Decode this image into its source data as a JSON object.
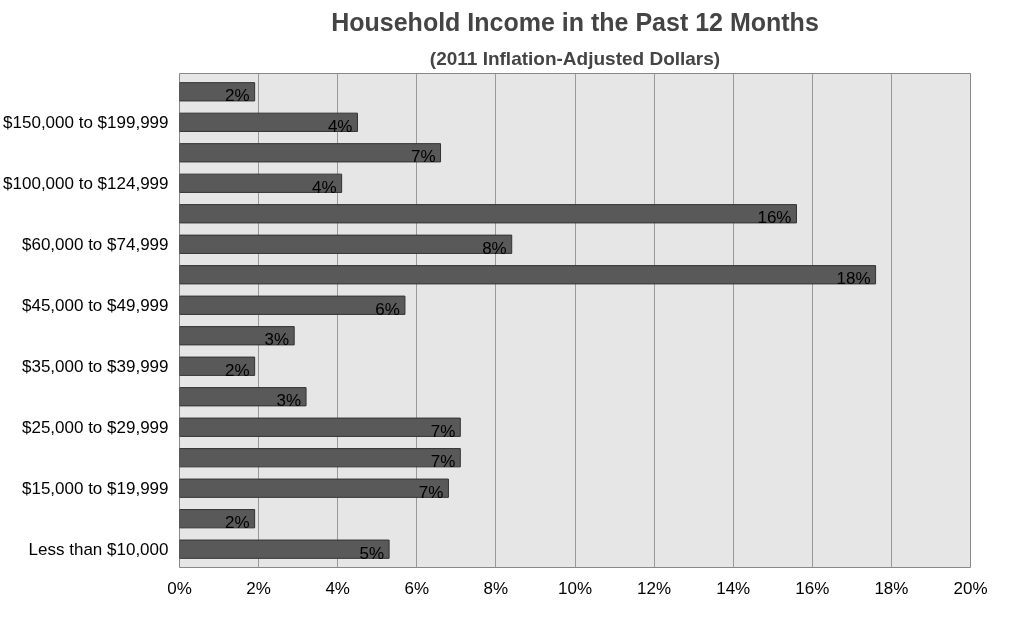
{
  "chart_data": {
    "type": "bar",
    "orientation": "horizontal",
    "title": "Household Income in the Past 12 Months",
    "subtitle": "(2011 Inflation-Adjusted Dollars)",
    "categories": [
      null,
      "$150,000 to $199,999",
      null,
      "$100,000 to $124,999",
      null,
      "$60,000 to $74,999",
      null,
      "$45,000 to $49,999",
      null,
      "$35,000 to $39,999",
      null,
      "$25,000 to $29,999",
      null,
      "$15,000 to $19,999",
      null,
      "Less than $10,000"
    ],
    "values": [
      1.9,
      4.5,
      6.6,
      4.1,
      15.6,
      8.4,
      17.6,
      5.7,
      2.9,
      1.9,
      3.2,
      7.1,
      7.1,
      6.8,
      1.9,
      5.3
    ],
    "value_labels": [
      "2%",
      "4%",
      "7%",
      "4%",
      "16%",
      "8%",
      "18%",
      "6%",
      "3%",
      "2%",
      "3%",
      "7%",
      "7%",
      "7%",
      "2%",
      "5%"
    ],
    "color": "#595959",
    "xlim": [
      0,
      20
    ],
    "xticks": [
      {
        "value": 0,
        "label": "0%"
      },
      {
        "value": 2,
        "label": "2%"
      },
      {
        "value": 4,
        "label": "4%"
      },
      {
        "value": 6,
        "label": "6%"
      },
      {
        "value": 8,
        "label": "8%"
      },
      {
        "value": 10,
        "label": "10%"
      },
      {
        "value": 12,
        "label": "12%"
      },
      {
        "value": 14,
        "label": "14%"
      },
      {
        "value": 16,
        "label": "16%"
      },
      {
        "value": 18,
        "label": "18%"
      },
      {
        "value": 20,
        "label": "20%"
      }
    ],
    "grid": "x"
  }
}
